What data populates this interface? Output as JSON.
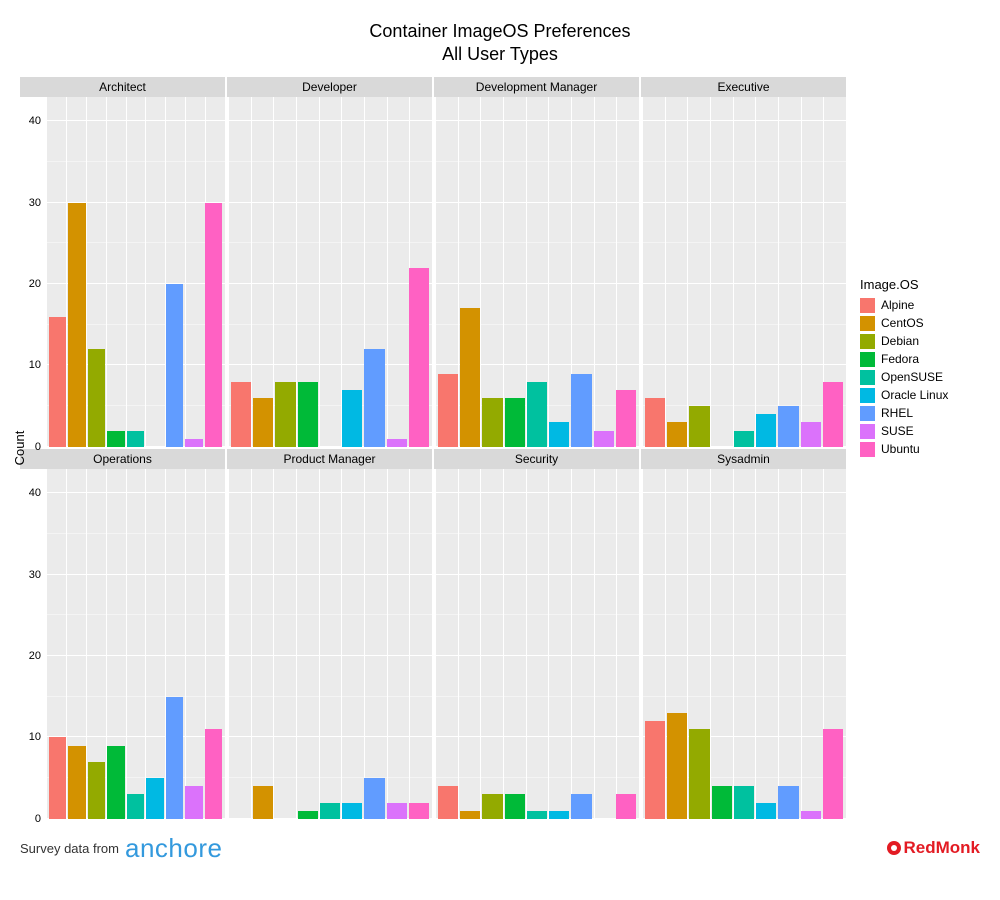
{
  "title_line1": "Container ImageOS Preferences",
  "title_line2": "All User Types",
  "y_label": "Count",
  "legend_title": "Image.OS",
  "y_axis": {
    "min": 0,
    "max": 43,
    "ticks": [
      0,
      10,
      20,
      30,
      40
    ],
    "minor_ticks": [
      5,
      15,
      25,
      35
    ]
  },
  "categories": [
    {
      "name": "Alpine",
      "color": "#f8766d"
    },
    {
      "name": "CentOS",
      "color": "#d39200"
    },
    {
      "name": "Debian",
      "color": "#93aa00"
    },
    {
      "name": "Fedora",
      "color": "#00ba38"
    },
    {
      "name": "OpenSUSE",
      "color": "#00c19f"
    },
    {
      "name": "Oracle Linux",
      "color": "#00b9e3"
    },
    {
      "name": "RHEL",
      "color": "#619cff"
    },
    {
      "name": "SUSE",
      "color": "#db72fb"
    },
    {
      "name": "Ubuntu",
      "color": "#ff61c3"
    }
  ],
  "facets": [
    {
      "label": "Architect",
      "values": [
        16,
        30,
        12,
        2,
        2,
        0,
        20,
        1,
        30
      ],
      "show_y": true
    },
    {
      "label": "Developer",
      "values": [
        8,
        6,
        8,
        8,
        0,
        7,
        12,
        1,
        22
      ],
      "show_y": false
    },
    {
      "label": "Development Manager",
      "values": [
        9,
        17,
        6,
        6,
        8,
        3,
        9,
        2,
        7
      ],
      "show_y": false
    },
    {
      "label": "Executive",
      "values": [
        6,
        3,
        5,
        0,
        2,
        4,
        5,
        3,
        8
      ],
      "show_y": false
    },
    {
      "label": "Operations",
      "values": [
        10,
        9,
        7,
        9,
        3,
        5,
        15,
        4,
        11
      ],
      "show_y": true
    },
    {
      "label": "Product Manager",
      "values": [
        0,
        4,
        0,
        1,
        2,
        2,
        5,
        2,
        2
      ],
      "show_y": false
    },
    {
      "label": "Security",
      "values": [
        4,
        1,
        3,
        3,
        1,
        1,
        3,
        0,
        3
      ],
      "show_y": false
    },
    {
      "label": "Sysadmin",
      "values": [
        12,
        13,
        11,
        4,
        4,
        2,
        4,
        1,
        11
      ],
      "show_y": false
    }
  ],
  "footer": {
    "survey_text": "Survey data from",
    "anchore": "anchore",
    "redmonk": "RedMonk"
  },
  "style": {
    "panel_bg": "#ebebeb",
    "grid_major": "#ffffff",
    "grid_minor": "#f4f4f4",
    "facet_header_bg": "#d9d9d9",
    "title_fontsize": 18,
    "facet_label_fontsize": 12,
    "axis_fontsize": 11,
    "redmonk_color": "#e31b23",
    "anchore_color": "#3399dd"
  }
}
